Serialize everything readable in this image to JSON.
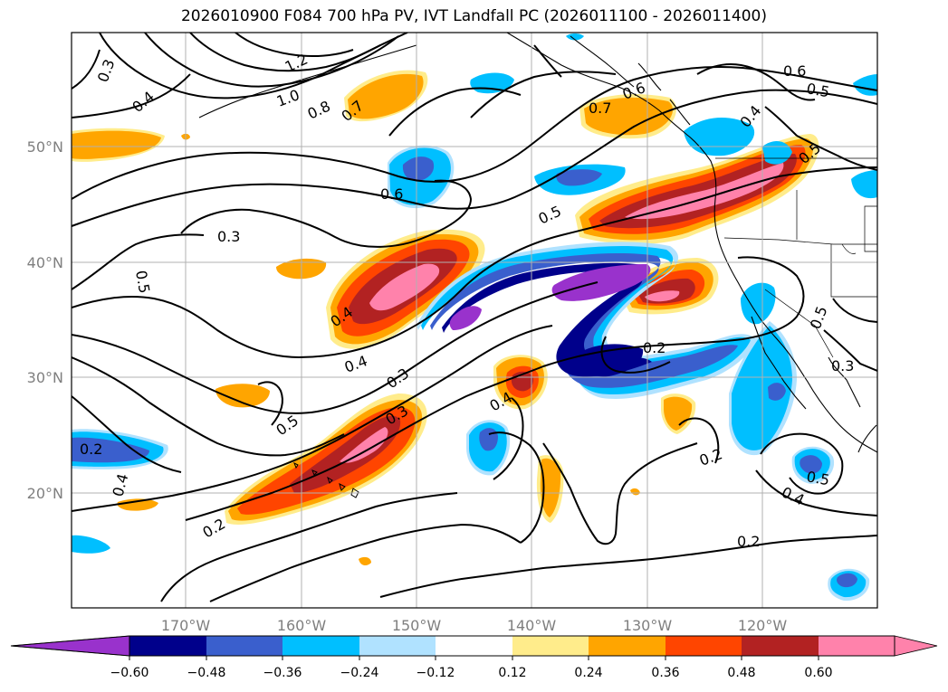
{
  "title": "2026010900 F084 700 hPa PV, IVT Landfall PC (2026011100 - 2026011400)",
  "map": {
    "lon_range": [
      -180,
      -110
    ],
    "lat_range": [
      10,
      60
    ],
    "lon_ticks": [
      "170°W",
      "160°W",
      "150°W",
      "140°W",
      "130°W",
      "120°W"
    ],
    "lat_ticks": [
      "50°N",
      "40°N",
      "30°N",
      "20°N"
    ],
    "pv_contour_labels": [
      "0.3",
      "0.4",
      "1.2",
      "1.0",
      "0.8",
      "0.7",
      "0.6",
      "0.5",
      "0.7",
      "0.4",
      "0.6",
      "0.5",
      "0.6",
      "0.5",
      "0.3",
      "0.5",
      "0.4",
      "0.4",
      "0.3",
      "0.2",
      "0.4",
      "0.5",
      "0.3",
      "0.4",
      "0.2",
      "0.5",
      "0.2",
      "0.5",
      "0.4",
      "0.2",
      "0.3",
      "0.2"
    ]
  },
  "colorbar": {
    "labels": [
      "−0.60",
      "−0.48",
      "−0.36",
      "−0.24",
      "−0.12",
      "0.12",
      "0.24",
      "0.36",
      "0.48",
      "0.60"
    ],
    "colors": [
      "#9932cc",
      "#00008b",
      "#3a5fcd",
      "#00bfff",
      "#b0e2ff",
      "#ffffff",
      "#ffec8b",
      "#ffa500",
      "#ff4500",
      "#b22222",
      "#ff82ab"
    ]
  }
}
